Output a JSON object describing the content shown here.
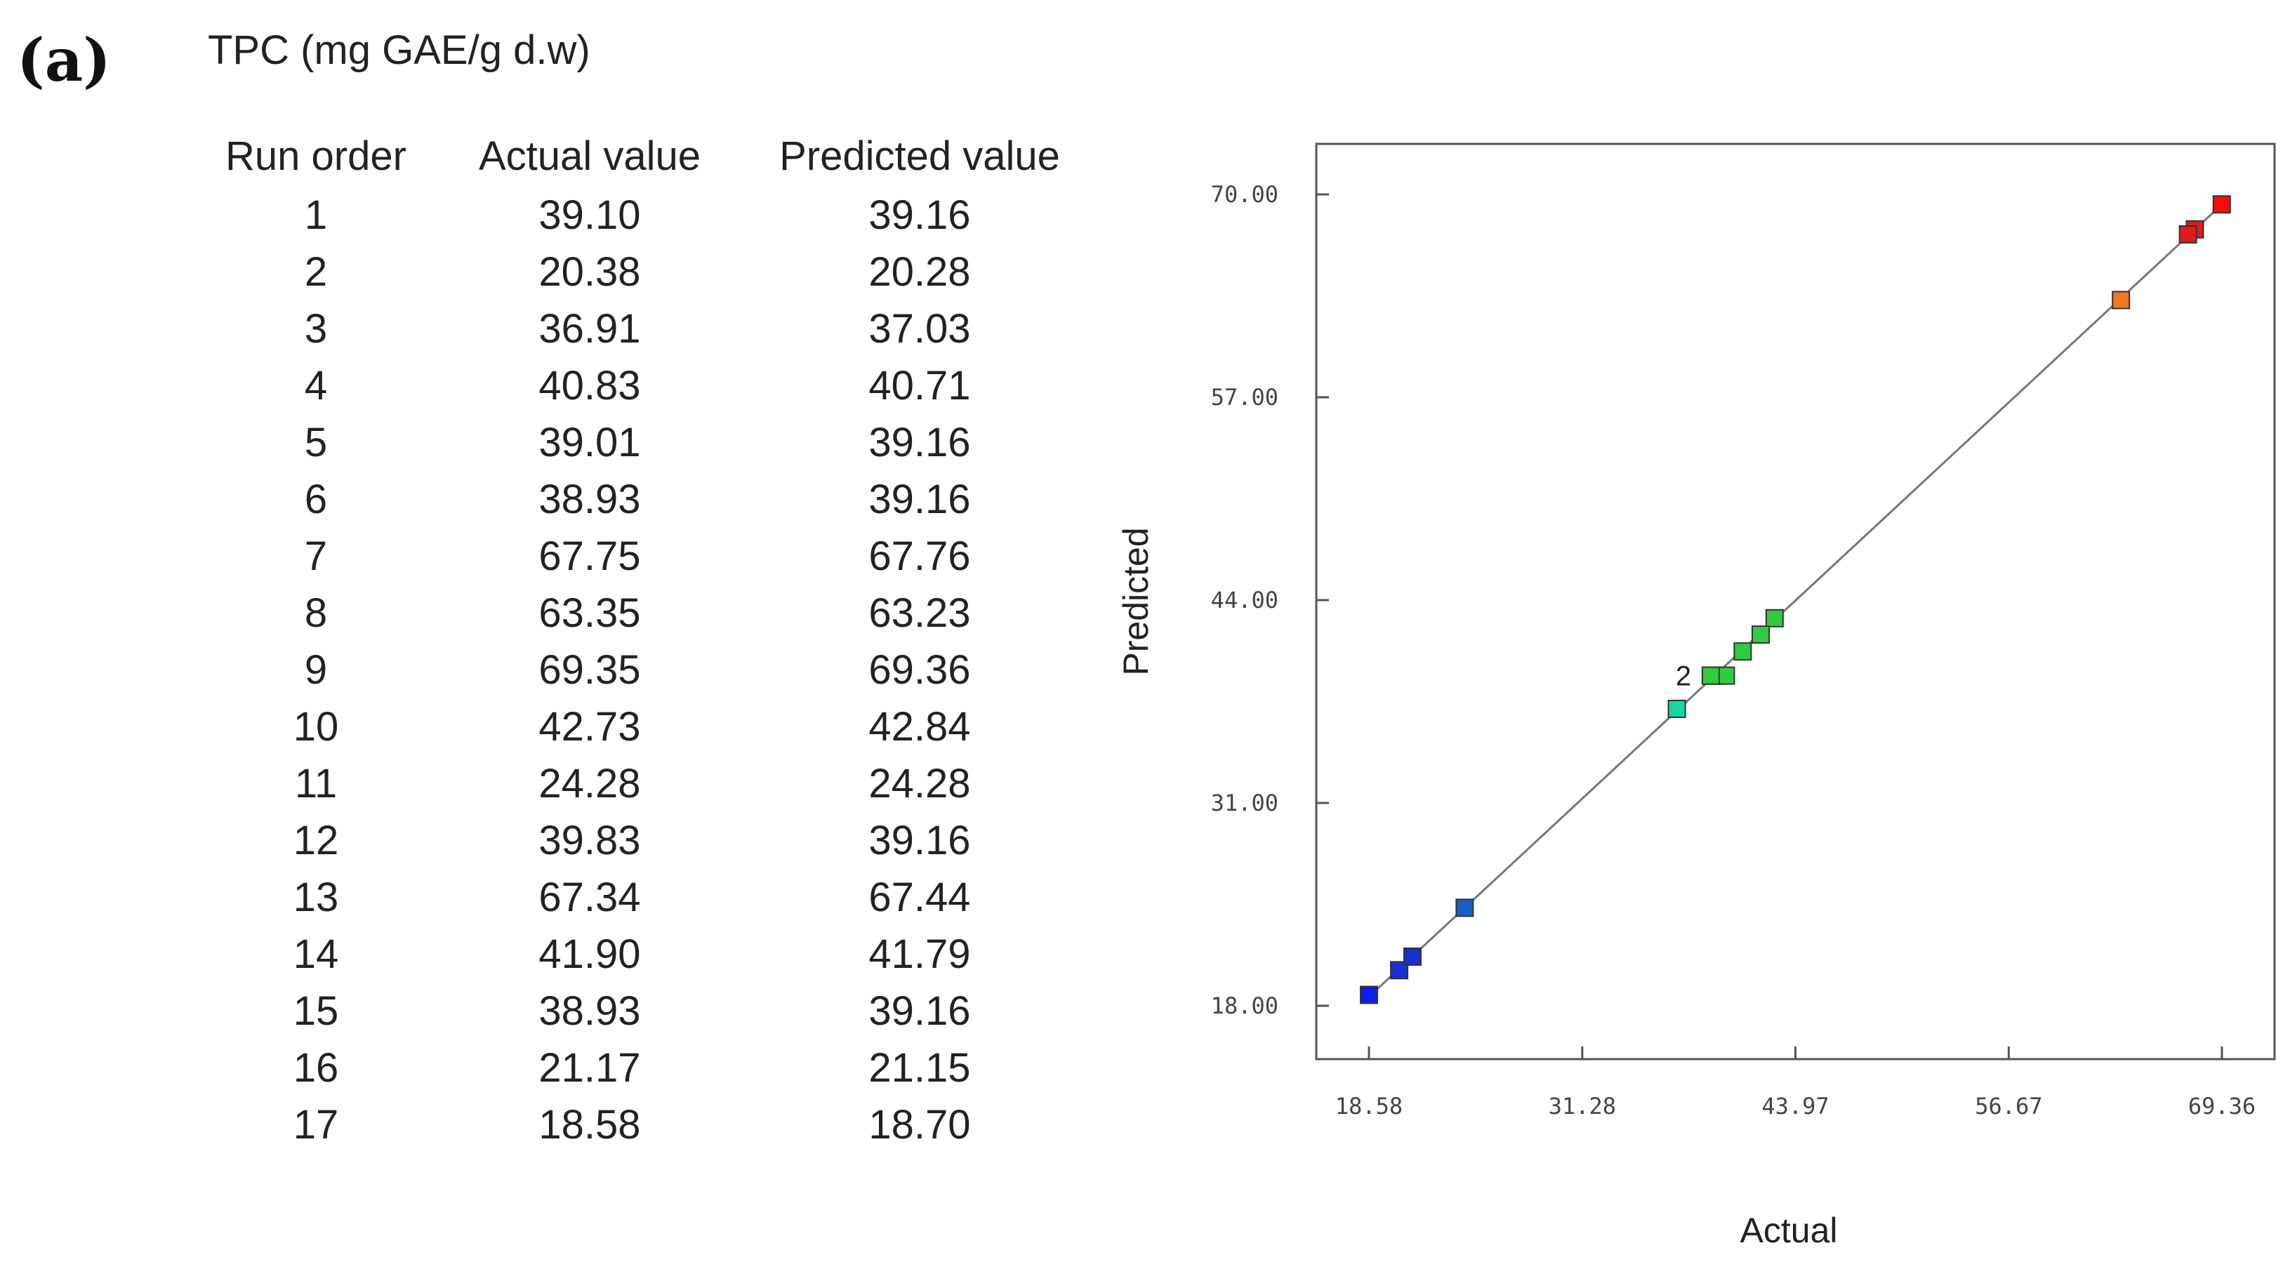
{
  "panel_label": "(a)",
  "table": {
    "title": "TPC (mg GAE/g d.w)",
    "headers": [
      "Run order",
      "Actual value",
      "Predicted value"
    ],
    "rows": [
      [
        "1",
        "39.10",
        "39.16"
      ],
      [
        "2",
        "20.38",
        "20.28"
      ],
      [
        "3",
        "36.91",
        "37.03"
      ],
      [
        "4",
        "40.83",
        "40.71"
      ],
      [
        "5",
        "39.01",
        "39.16"
      ],
      [
        "6",
        "38.93",
        "39.16"
      ],
      [
        "7",
        "67.75",
        "67.76"
      ],
      [
        "8",
        "63.35",
        "63.23"
      ],
      [
        "9",
        "69.35",
        "69.36"
      ],
      [
        "10",
        "42.73",
        "42.84"
      ],
      [
        "11",
        "24.28",
        "24.28"
      ],
      [
        "12",
        "39.83",
        "39.16"
      ],
      [
        "13",
        "67.34",
        "67.44"
      ],
      [
        "14",
        "41.90",
        "41.79"
      ],
      [
        "15",
        "38.93",
        "39.16"
      ],
      [
        "16",
        "21.17",
        "21.15"
      ],
      [
        "17",
        "18.58",
        "18.70"
      ]
    ]
  },
  "chart_data": {
    "type": "scatter",
    "title": "",
    "xlabel": "Actual",
    "ylabel": "Predicted",
    "xlim": [
      18.58,
      69.36
    ],
    "ylim": [
      18.0,
      70.0
    ],
    "xticks": [
      "18.58",
      "31.28",
      "43.97",
      "56.67",
      "69.36"
    ],
    "yticks": [
      "18.00",
      "31.00",
      "44.00",
      "57.00",
      "70.00"
    ],
    "grid": false,
    "reference_line": "y = x",
    "points": [
      {
        "x": 39.1,
        "y": 39.16,
        "color": "#2ecc40"
      },
      {
        "x": 20.38,
        "y": 20.28,
        "color": "#1a2fd6"
      },
      {
        "x": 36.91,
        "y": 37.03,
        "color": "#19d6a0"
      },
      {
        "x": 40.83,
        "y": 40.71,
        "color": "#2ecc40"
      },
      {
        "x": 39.01,
        "y": 39.16,
        "color": "#2ecc40"
      },
      {
        "x": 38.93,
        "y": 39.16,
        "color": "#2ecc40"
      },
      {
        "x": 67.75,
        "y": 67.76,
        "color": "#e01b1b"
      },
      {
        "x": 63.35,
        "y": 63.23,
        "color": "#f07820"
      },
      {
        "x": 69.35,
        "y": 69.36,
        "color": "#ff0a0a"
      },
      {
        "x": 42.73,
        "y": 42.84,
        "color": "#2ecc40"
      },
      {
        "x": 24.28,
        "y": 24.28,
        "color": "#1b5fc4"
      },
      {
        "x": 39.83,
        "y": 39.16,
        "color": "#2ecc40"
      },
      {
        "x": 67.34,
        "y": 67.44,
        "color": "#e01b1b"
      },
      {
        "x": 41.9,
        "y": 41.79,
        "color": "#2ecc40"
      },
      {
        "x": 38.93,
        "y": 39.16,
        "color": "#2ecc40"
      },
      {
        "x": 21.17,
        "y": 21.15,
        "color": "#1a2fd6"
      },
      {
        "x": 18.58,
        "y": 18.7,
        "color": "#0a1ff0"
      }
    ],
    "annotations": [
      {
        "text": "2",
        "x": 38.93,
        "y": 39.16
      }
    ]
  }
}
